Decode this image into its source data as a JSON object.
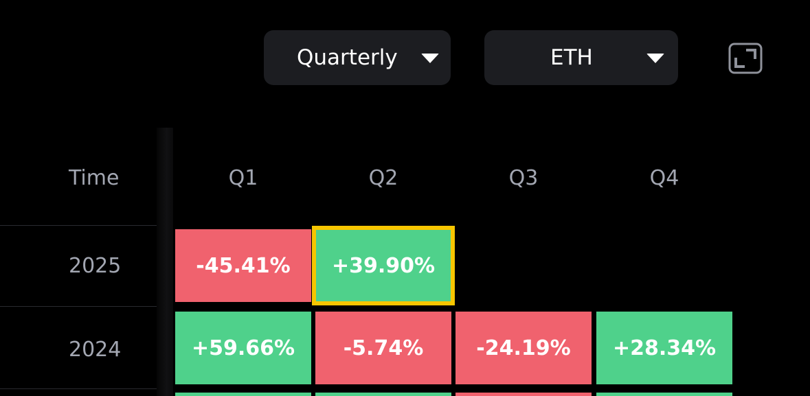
{
  "toolbar": {
    "period_label": "Quarterly",
    "asset_label": "ETH",
    "expand_icon": "expand-icon"
  },
  "table": {
    "headers": {
      "time": "Time",
      "q1": "Q1",
      "q2": "Q2",
      "q3": "Q3",
      "q4": "Q4"
    },
    "rows": [
      {
        "year": "2025",
        "q1": "-45.41%",
        "q2": "+39.90%",
        "q3": "",
        "q4": ""
      },
      {
        "year": "2024",
        "q1": "+59.66%",
        "q2": "-5.74%",
        "q3": "-24.19%",
        "q4": "+28.34%"
      }
    ],
    "selected_cell": "2025-Q2"
  },
  "colors": {
    "positive": "#4fd18b",
    "negative": "#f0626e",
    "selected_outline": "#f7c600",
    "dropdown_bg": "#1c1d21",
    "header_text": "#a3a7b2"
  }
}
